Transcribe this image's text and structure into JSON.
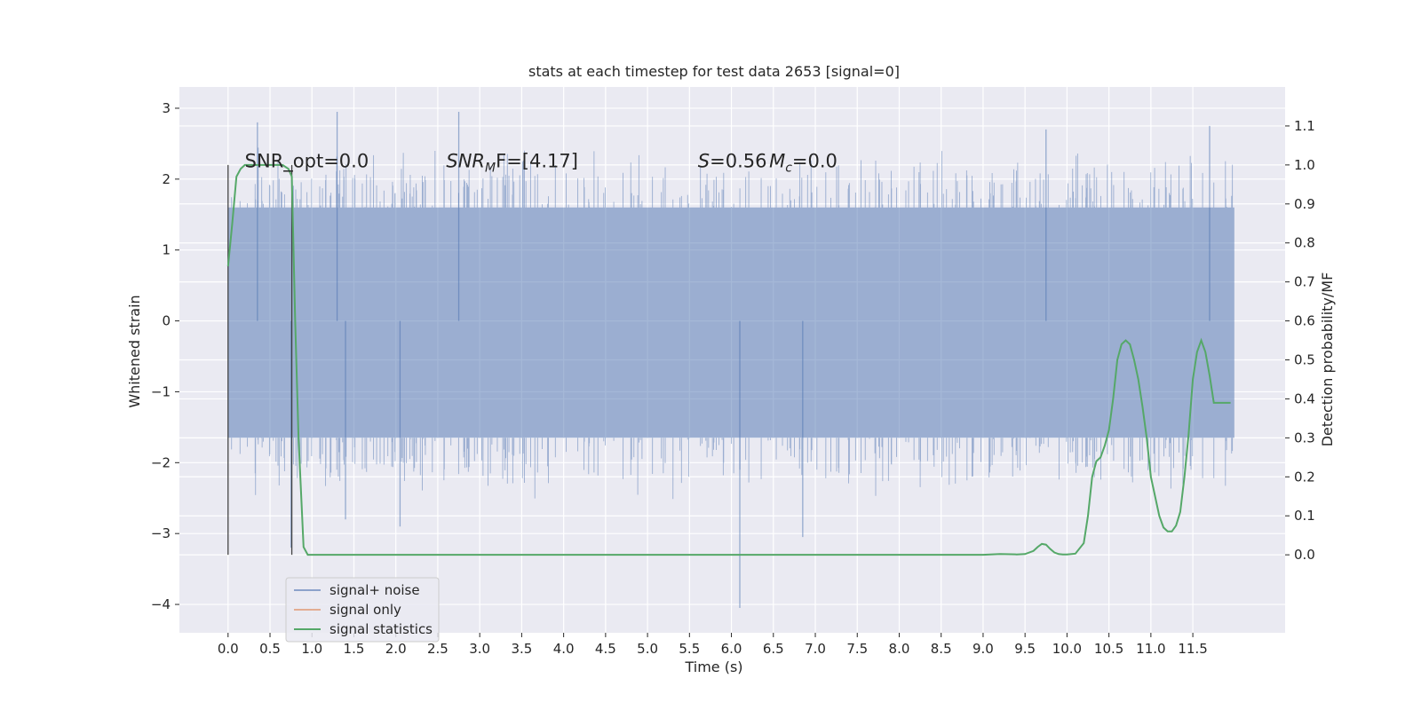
{
  "chart_data": {
    "type": "line",
    "title": "stats at each timestep for test data 2653 [signal=0]",
    "xlabel": "Time (s)",
    "ylabel": "Whitened strain",
    "y2label": "Detection probability/MF",
    "xlim": [
      -0.58,
      12.6
    ],
    "ylim": [
      -4.4,
      3.3
    ],
    "y2lim": [
      -0.2,
      1.2
    ],
    "grid": true,
    "legend_position": "lower-left",
    "x_ticks": [
      0.0,
      0.5,
      1.0,
      1.5,
      2.0,
      2.5,
      3.0,
      3.5,
      4.0,
      4.5,
      5.0,
      5.5,
      6.0,
      6.5,
      7.0,
      7.5,
      8.0,
      8.5,
      9.0,
      9.5,
      10.0,
      10.5,
      11.0,
      11.5
    ],
    "x_tick_labels": [
      "0.0",
      "0.5",
      "1.0",
      "1.5",
      "2.0",
      "2.5",
      "3.0",
      "3.5",
      "4.0",
      "4.5",
      "5.0",
      "5.5",
      "6.0",
      "6.5",
      "7.0",
      "7.5",
      "8.0",
      "8.5",
      "9.0",
      "9.5",
      "10.0",
      "10.5",
      "11.0",
      "11.5"
    ],
    "y_ticks": [
      3,
      2,
      1,
      0,
      -1,
      -2,
      -3,
      -4
    ],
    "y_tick_labels": [
      "3",
      "2",
      "1",
      "0",
      "−1",
      "−2",
      "−3",
      "−4"
    ],
    "y2_ticks": [
      1.1,
      1.0,
      0.9,
      0.8,
      0.7,
      0.6,
      0.5,
      0.4,
      0.3,
      0.2,
      0.1,
      0.0
    ],
    "y2_tick_labels": [
      "1.1",
      "1.0",
      "0.9",
      "0.8",
      "0.7",
      "0.6",
      "0.5",
      "0.4",
      "0.3",
      "0.2",
      "0.1",
      "0.0"
    ],
    "annotations": [
      {
        "text": "SNR_opt=0.0",
        "x": 0.2,
        "y": 2.17
      },
      {
        "text": "SNR",
        "sub": "M",
        "tail": "F=[4.17]",
        "x": 2.6,
        "y": 2.17
      },
      {
        "text": "S",
        "tail": "=0.56",
        "x": 5.6,
        "y": 2.17
      },
      {
        "text": "M",
        "sub": "c",
        "tail": "=0.0",
        "x": 6.45,
        "y": 2.17
      }
    ],
    "vertical_markers": [
      {
        "x": 0.0,
        "y_top": 2.2,
        "y_bottom": -3.3
      },
      {
        "x": 0.76,
        "y_top": 2.2,
        "y_bottom": -3.3
      }
    ],
    "noise_series": {
      "name": "signal+ noise",
      "color": "#4c72b0",
      "x_start": 0.0,
      "x_end": 11.99,
      "band_min": -1.65,
      "band_max": 1.6,
      "peaks": [
        [
          0.35,
          2.8
        ],
        [
          1.3,
          2.95
        ],
        [
          2.75,
          2.95
        ],
        [
          9.75,
          2.7
        ],
        [
          11.7,
          2.75
        ],
        [
          6.1,
          -4.05
        ],
        [
          0.75,
          -3.2
        ],
        [
          6.85,
          -3.05
        ],
        [
          1.4,
          -2.8
        ],
        [
          2.05,
          -2.9
        ]
      ]
    },
    "series": [
      {
        "name": "signal only",
        "color": "#dd8452",
        "x": [],
        "y": []
      },
      {
        "name": "signal statistics",
        "color": "#55a868",
        "axis": "right",
        "x": [
          0.0,
          0.05,
          0.1,
          0.15,
          0.2,
          0.3,
          0.5,
          0.65,
          0.72,
          0.76,
          0.8,
          0.84,
          0.9,
          0.95,
          1.0,
          1.5,
          2.0,
          3.0,
          4.0,
          4.5,
          5.0,
          6.0,
          7.0,
          8.0,
          9.0,
          9.2,
          9.4,
          9.5,
          9.6,
          9.65,
          9.7,
          9.75,
          9.8,
          9.85,
          9.9,
          9.95,
          10.0,
          10.1,
          10.2,
          10.25,
          10.3,
          10.35,
          10.4,
          10.45,
          10.5,
          10.55,
          10.6,
          10.65,
          10.7,
          10.75,
          10.8,
          10.85,
          10.9,
          10.95,
          11.0,
          11.05,
          11.1,
          11.15,
          11.2,
          11.25,
          11.3,
          11.35,
          11.4,
          11.45,
          11.5,
          11.55,
          11.6,
          11.65,
          11.7,
          11.75,
          11.8,
          11.85,
          11.9,
          11.95
        ],
        "y": [
          0.74,
          0.85,
          0.97,
          0.99,
          1.0,
          1.0,
          1.0,
          1.0,
          0.99,
          0.97,
          0.6,
          0.3,
          0.02,
          0.0,
          0.0,
          0.0,
          0.0,
          0.0,
          0.0,
          0.0,
          0.0,
          0.0,
          0.0,
          0.0,
          0.0,
          0.002,
          0.001,
          0.002,
          0.01,
          0.02,
          0.028,
          0.026,
          0.015,
          0.006,
          0.002,
          0.001,
          0.001,
          0.003,
          0.03,
          0.1,
          0.2,
          0.24,
          0.25,
          0.28,
          0.32,
          0.4,
          0.5,
          0.54,
          0.55,
          0.54,
          0.5,
          0.45,
          0.38,
          0.3,
          0.2,
          0.15,
          0.1,
          0.07,
          0.06,
          0.06,
          0.075,
          0.11,
          0.2,
          0.31,
          0.45,
          0.52,
          0.55,
          0.52,
          0.46,
          0.39,
          0.39,
          0.39,
          0.39,
          0.39
        ]
      }
    ]
  }
}
